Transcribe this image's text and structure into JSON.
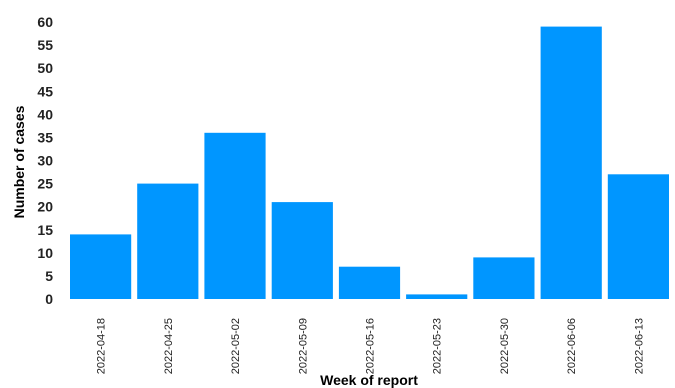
{
  "chart_data": {
    "type": "bar",
    "title": "",
    "xlabel": "Week of report",
    "ylabel": "Number of cases",
    "categories": [
      "2022-04-18",
      "2022-04-25",
      "2022-05-02",
      "2022-05-09",
      "2022-05-16",
      "2022-05-23",
      "2022-05-30",
      "2022-06-06",
      "2022-06-13"
    ],
    "values": [
      14,
      25,
      36,
      21,
      7,
      1,
      9,
      59,
      27
    ],
    "ylim": [
      0,
      60
    ],
    "yticks": [
      0,
      5,
      10,
      15,
      20,
      25,
      30,
      35,
      40,
      45,
      50,
      55,
      60
    ],
    "grid": false,
    "legend": "none",
    "bar_color": "#0096FF"
  }
}
